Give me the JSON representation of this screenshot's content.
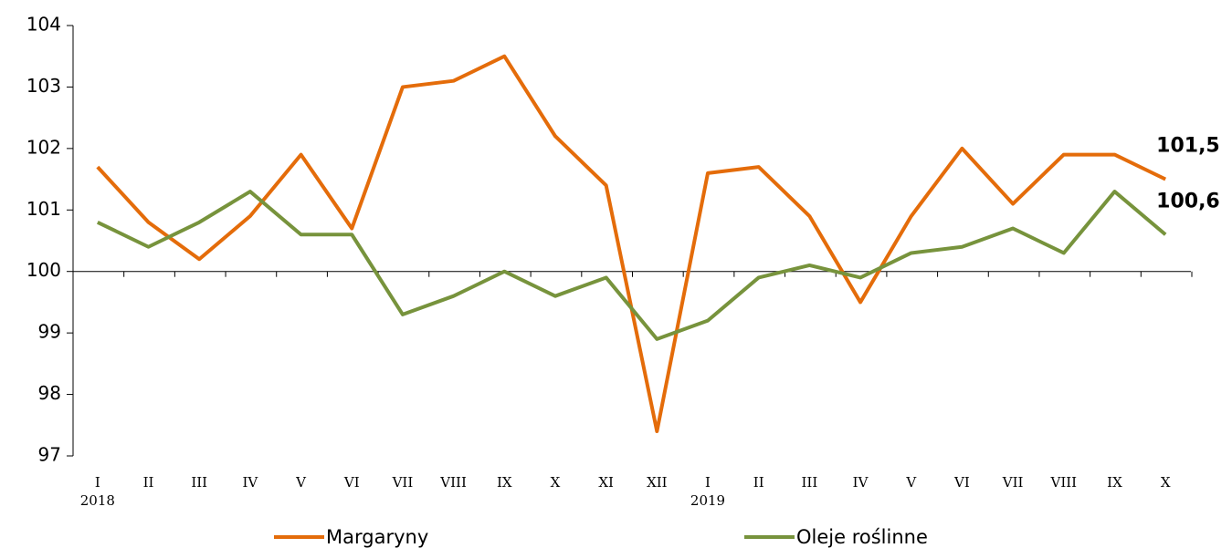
{
  "chart_data": {
    "type": "line",
    "categories": [
      "I",
      "II",
      "III",
      "IV",
      "V",
      "VI",
      "VII",
      "VIII",
      "IX",
      "X",
      "XI",
      "XII",
      "I",
      "II",
      "III",
      "IV",
      "V",
      "VI",
      "VII",
      "VIII",
      "IX",
      "X"
    ],
    "x_groups": [
      {
        "label": "2018",
        "start": 0
      },
      {
        "label": "2019",
        "start": 12
      }
    ],
    "series": [
      {
        "name": "Margaryny",
        "color": "#e46c0a",
        "values": [
          101.7,
          100.8,
          100.2,
          100.9,
          101.9,
          100.7,
          103.0,
          103.1,
          103.5,
          102.2,
          101.4,
          97.4,
          101.6,
          101.7,
          100.9,
          99.5,
          100.9,
          102.0,
          101.1,
          101.9,
          101.9,
          101.5
        ],
        "value_labels": [
          null,
          null,
          null,
          null,
          null,
          null,
          null,
          null,
          null,
          null,
          null,
          null,
          null,
          null,
          null,
          null,
          null,
          null,
          null,
          null,
          null,
          "101,5"
        ]
      },
      {
        "name": "Oleje roślinne",
        "color": "#77933c",
        "values": [
          100.8,
          100.4,
          100.8,
          101.3,
          100.6,
          100.6,
          99.3,
          99.6,
          100.0,
          99.6,
          99.9,
          98.9,
          99.2,
          99.9,
          100.1,
          99.9,
          100.3,
          100.4,
          100.7,
          100.3,
          101.3,
          100.6
        ],
        "value_labels": [
          null,
          null,
          null,
          null,
          null,
          null,
          null,
          null,
          null,
          null,
          null,
          null,
          null,
          null,
          null,
          null,
          null,
          null,
          null,
          null,
          null,
          "100,6"
        ]
      }
    ],
    "ylim": [
      97,
      104
    ],
    "yticks": [
      97,
      98,
      99,
      100,
      101,
      102,
      103,
      104
    ],
    "x_axis_crosses": 100,
    "grid": false,
    "legend": "bottom"
  }
}
